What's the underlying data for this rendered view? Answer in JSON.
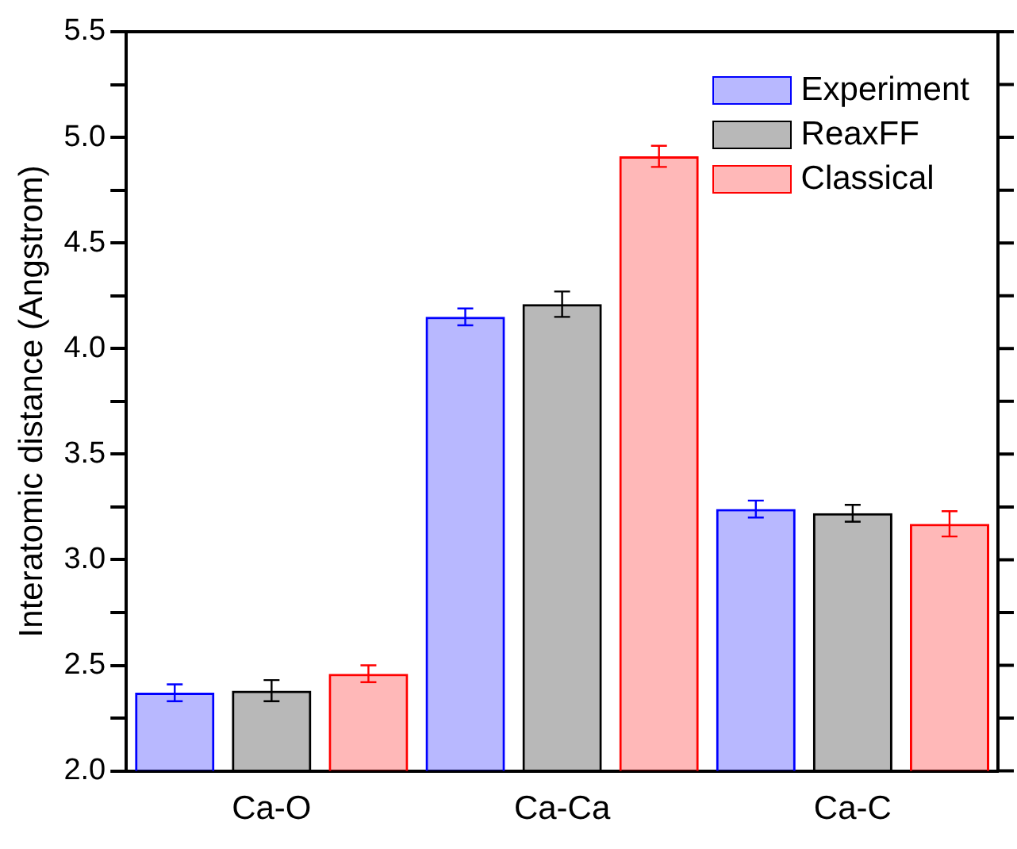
{
  "chart_data": {
    "type": "bar",
    "ylabel": "Interatomic distance (Angstrom)",
    "categories": [
      "Ca-O",
      "Ca-Ca",
      "Ca-C"
    ],
    "series": [
      {
        "name": "Experiment",
        "color": "#0000ff",
        "values": [
          2.37,
          4.15,
          3.24
        ],
        "errors": [
          0.04,
          0.04,
          0.04
        ]
      },
      {
        "name": "ReaxFF",
        "color": "#000000",
        "values": [
          2.38,
          4.21,
          3.22
        ],
        "errors": [
          0.05,
          0.06,
          0.04
        ]
      },
      {
        "name": "Classical",
        "color": "#ff0000",
        "values": [
          2.46,
          4.91,
          3.17
        ],
        "errors": [
          0.04,
          0.05,
          0.06
        ]
      }
    ],
    "ylim": [
      2.0,
      5.5
    ],
    "yticks": [
      {
        "value": 2,
        "label": "2.0"
      },
      {
        "value": 2.25,
        "label": null
      },
      2.5,
      {
        "value": 2.75,
        "label": null
      },
      {
        "value": 3,
        "label": "3.0"
      },
      {
        "value": 3.25,
        "label": null
      },
      3.5,
      {
        "value": 3.75,
        "label": null
      },
      {
        "value": 4,
        "label": "4.0"
      },
      {
        "value": 4.25,
        "label": null
      },
      4.5,
      {
        "value": 4.75,
        "label": null
      },
      {
        "value": 5,
        "label": "5.0"
      },
      {
        "value": 5.25,
        "label": null
      },
      5.5
    ],
    "grid": false,
    "legend": "top right"
  }
}
